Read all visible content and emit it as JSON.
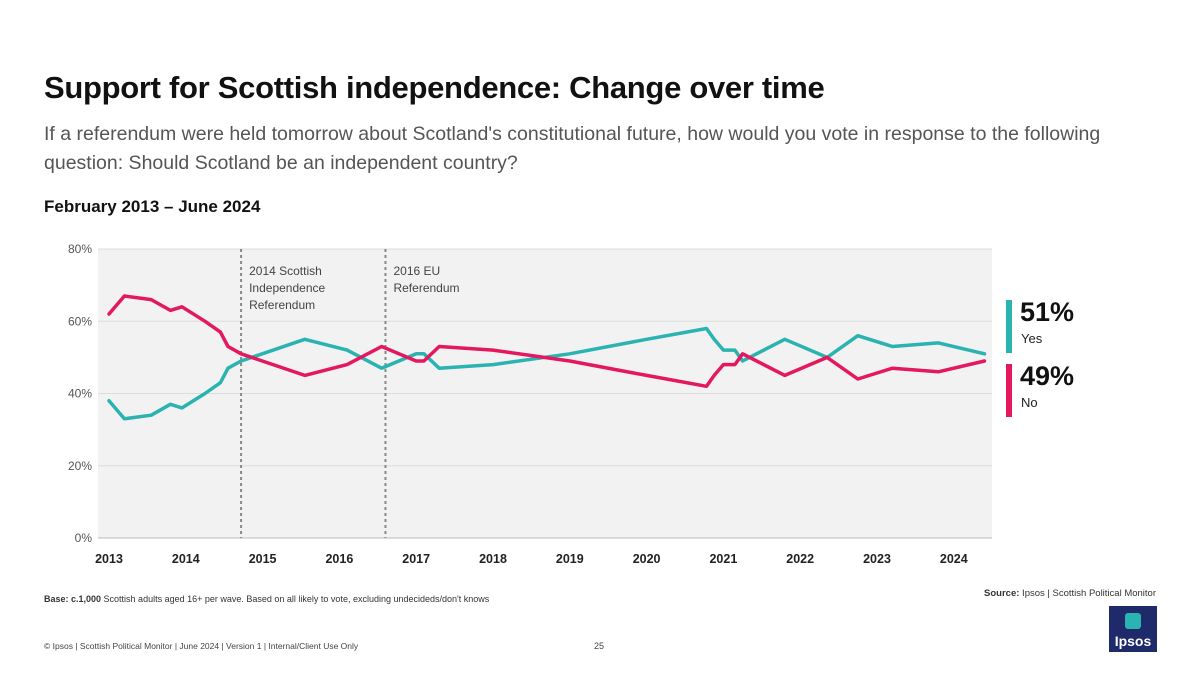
{
  "title": "Support for Scottish independence: Change over time",
  "subtitle": "If a referendum were held tomorrow about Scotland's constitutional future, how would you vote in response to the following question: Should Scotland be an independent country?",
  "period": "February 2013 – June 2024",
  "legend": {
    "yes": {
      "value": "51%",
      "label": "Yes",
      "color": "#2ab3b1"
    },
    "no": {
      "value": "49%",
      "label": "No",
      "color": "#e4185e"
    }
  },
  "base": {
    "bold": "Base: c.1,000",
    "text": " Scottish adults aged 16+ per wave. Based on all likely to vote, excluding undecideds/don't knows"
  },
  "source": {
    "bold": "Source:",
    "text": " Ipsos | Scottish Political Monitor"
  },
  "footer": "© Ipsos | Scottish Political Monitor | June 2024 | Version 1 | Internal/Client Use Only",
  "page_number": "25",
  "logo_text": "Ipsos",
  "chart_data": {
    "type": "line",
    "xlim": [
      2013,
      2024.4
    ],
    "ylim": [
      0,
      80
    ],
    "yticks": [
      0,
      20,
      40,
      60,
      80
    ],
    "ytick_labels": [
      "0%",
      "20%",
      "40%",
      "60%",
      "80%"
    ],
    "xticks": [
      2013,
      2014,
      2015,
      2016,
      2017,
      2018,
      2019,
      2020,
      2021,
      2022,
      2023,
      2024
    ],
    "xtick_labels": [
      "2013",
      "2014",
      "2015",
      "2016",
      "2017",
      "2018",
      "2019",
      "2020",
      "2021",
      "2022",
      "2023",
      "2024"
    ],
    "series": [
      {
        "name": "Yes",
        "color": "#2ab3b1",
        "x": [
          2013.0,
          2013.2,
          2013.55,
          2013.8,
          2013.95,
          2014.25,
          2014.45,
          2014.55,
          2014.72,
          2015.55,
          2016.1,
          2016.55,
          2017.0,
          2017.1,
          2017.3,
          2018.0,
          2019.0,
          2020.0,
          2020.78,
          2020.88,
          2021.0,
          2021.15,
          2021.25,
          2021.8,
          2022.35,
          2022.75,
          2023.2,
          2023.8,
          2024.4
        ],
        "values": [
          38,
          33,
          34,
          37,
          36,
          40,
          43,
          47,
          49,
          55,
          52,
          47,
          51,
          51,
          47,
          48,
          51,
          55,
          58,
          55,
          52,
          52,
          49,
          55,
          50,
          56,
          53,
          54,
          51
        ]
      },
      {
        "name": "No",
        "color": "#e4185e",
        "x": [
          2013.0,
          2013.2,
          2013.55,
          2013.8,
          2013.95,
          2014.25,
          2014.45,
          2014.55,
          2014.72,
          2015.55,
          2016.1,
          2016.55,
          2017.0,
          2017.1,
          2017.3,
          2018.0,
          2019.0,
          2020.0,
          2020.78,
          2020.88,
          2021.0,
          2021.15,
          2021.25,
          2021.8,
          2022.35,
          2022.75,
          2023.2,
          2023.8,
          2024.4
        ],
        "values": [
          62,
          67,
          66,
          63,
          64,
          60,
          57,
          53,
          51,
          45,
          48,
          53,
          49,
          49,
          53,
          52,
          49,
          45,
          42,
          45,
          48,
          48,
          51,
          45,
          50,
          44,
          47,
          46,
          49
        ]
      }
    ],
    "annotations": [
      {
        "x": 2014.72,
        "text_lines": [
          "2014 Scottish",
          "Independence",
          "Referendum"
        ]
      },
      {
        "x": 2016.6,
        "text_lines": [
          "2016 EU",
          "Referendum"
        ]
      }
    ]
  }
}
